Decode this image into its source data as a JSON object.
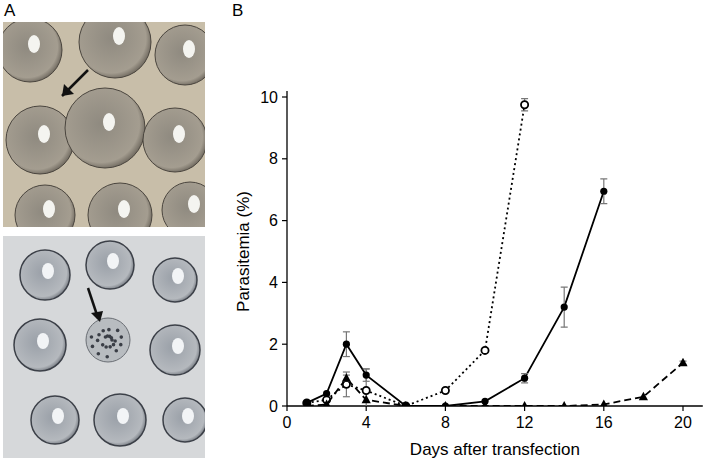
{
  "panel_labels": [
    "A",
    "B"
  ],
  "chart_data": {
    "type": "line",
    "xlabel": "Days after transfection",
    "ylabel": "Parasitemia (%)",
    "xlim": [
      0,
      21
    ],
    "xticks": [
      0,
      4,
      8,
      12,
      16,
      20
    ],
    "ylim": [
      0,
      10
    ],
    "yticks": [
      0,
      2,
      4,
      6,
      8,
      10
    ],
    "grid": false,
    "series": [
      {
        "color": "#000000",
        "marker": "open-circle",
        "line_style": "dotted",
        "x": [
          1,
          2,
          3,
          4,
          6,
          8,
          10,
          12
        ],
        "values": [
          0.1,
          0.2,
          0.7,
          0.5,
          0,
          0.5,
          1.8,
          9.75
        ],
        "errors": [
          null,
          null,
          0.4,
          0.7,
          null,
          null,
          null,
          0.2
        ]
      },
      {
        "color": "#000000",
        "marker": "filled-circle",
        "line_style": "solid",
        "x": [
          1,
          2,
          3,
          4,
          6,
          8,
          10,
          12,
          14,
          16
        ],
        "values": [
          0.1,
          0.4,
          2.0,
          1.0,
          0,
          0,
          0.15,
          0.9,
          3.2,
          6.95
        ],
        "errors": [
          null,
          null,
          0.4,
          0.2,
          null,
          null,
          null,
          0.15,
          0.65,
          0.4
        ]
      },
      {
        "color": "#000000",
        "marker": "filled-triangle",
        "line_style": "dashed",
        "x": [
          1,
          2,
          3,
          4,
          6,
          8,
          10,
          12,
          14,
          16,
          18,
          20
        ],
        "values": [
          0,
          0.05,
          0.9,
          0.2,
          0,
          0,
          0,
          0,
          0,
          0.05,
          0.3,
          1.4
        ],
        "errors": [
          null,
          null,
          0.1,
          null,
          null,
          null,
          null,
          null,
          null,
          null,
          null,
          0.05
        ]
      }
    ]
  }
}
